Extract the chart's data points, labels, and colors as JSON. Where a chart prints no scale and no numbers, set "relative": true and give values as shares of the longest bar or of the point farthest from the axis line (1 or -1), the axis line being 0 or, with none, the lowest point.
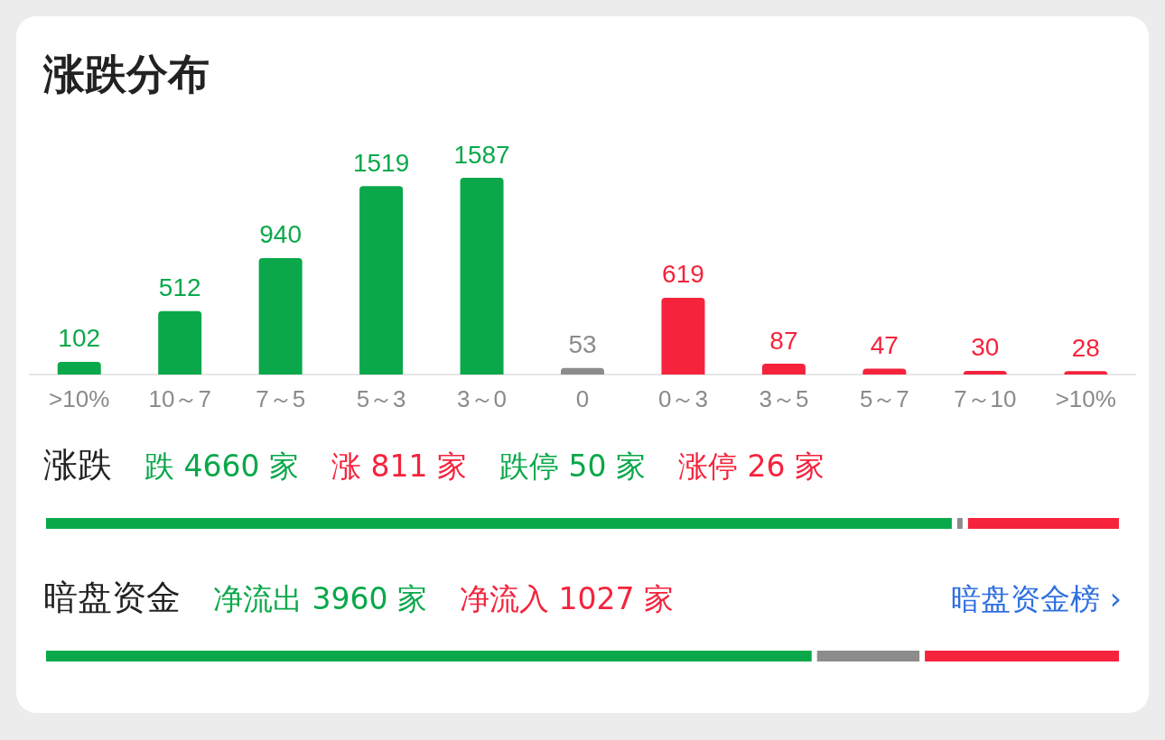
{
  "chart_data": [
    {
      "type": "bar",
      "title": "涨跌分布",
      "categories": [
        ">10%",
        "10～7",
        "7～5",
        "5～3",
        "3～0",
        "0",
        "0～3",
        "3～5",
        "5～7",
        "7～10",
        ">10%"
      ],
      "values": [
        102,
        512,
        940,
        1519,
        1587,
        53,
        619,
        87,
        47,
        30,
        28
      ],
      "colors": [
        "#0aa84a",
        "#0aa84a",
        "#0aa84a",
        "#0aa84a",
        "#0aa84a",
        "#8c8c8c",
        "#f5233c",
        "#f5233c",
        "#f5233c",
        "#f5233c",
        "#f5233c"
      ],
      "data_labels": true,
      "tick_labels": "x"
    },
    {
      "type": "bar",
      "title": "涨跌",
      "orientation": "horizontal",
      "stacked": true,
      "relative": true,
      "categories": [
        null
      ],
      "tick_labels": false,
      "series": [
        {
          "color": "#0aa84a",
          "values": [
            0.845
          ]
        },
        {
          "color": "#8c8c8c",
          "values": [
            0.01
          ]
        },
        {
          "color": "#f5233c",
          "values": [
            0.145
          ]
        }
      ],
      "annotations": [
        "跌 4660 家",
        "涨 811 家",
        "跌停 50 家",
        "涨停 26 家"
      ]
    },
    {
      "type": "bar",
      "title": "暗盘资金",
      "orientation": "horizontal",
      "stacked": true,
      "relative": true,
      "categories": [
        null
      ],
      "tick_labels": false,
      "series": [
        {
          "color": "#0aa84a",
          "values": [
            0.715
          ]
        },
        {
          "color": "#8c8c8c",
          "values": [
            0.1
          ]
        },
        {
          "color": "#f5233c",
          "values": [
            0.185
          ]
        }
      ],
      "annotations": [
        "净流出 3960 家",
        "净流入 1027 家",
        "暗盘资金榜 ›"
      ]
    }
  ]
}
